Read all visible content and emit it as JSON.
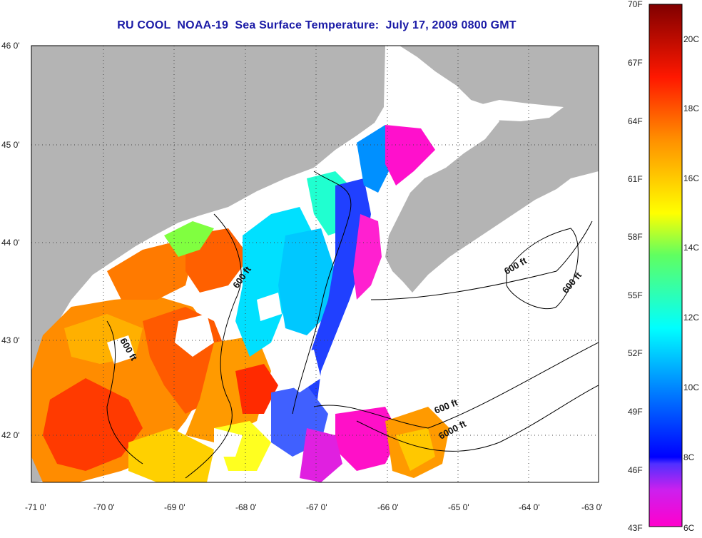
{
  "title": "RU COOL  NOAA-19  Sea Surface Temperature:  July 17, 2009 0800 GMT",
  "map": {
    "lon_range": [
      -71,
      -63
    ],
    "lat_range": [
      41.5,
      46
    ],
    "lon_ticks": [
      "-71 0'",
      "-70 0'",
      "-69 0'",
      "-68 0'",
      "-67 0'",
      "-66 0'",
      "-65 0'",
      "-64 0'",
      "-63 0'"
    ],
    "lat_ticks": [
      "46 0'",
      "45 0'",
      "44 0'",
      "43 0'",
      "42 0'"
    ],
    "contour_labels": [
      "600 ft",
      "600 ft",
      "600 ft",
      "600 ft",
      "600 ft",
      "6000 ft"
    ],
    "colors": {
      "land": "#b4b4b4",
      "cloud": "#ffffff",
      "frame": "#000000"
    }
  },
  "colorbar": {
    "fahrenheit_labels": [
      "70F",
      "67F",
      "64F",
      "61F",
      "58F",
      "55F",
      "52F",
      "49F",
      "46F",
      "43F"
    ],
    "celsius_labels": [
      "20C",
      "18C",
      "16C",
      "14C",
      "12C",
      "10C",
      "8C",
      "6C"
    ],
    "range_c": [
      6,
      21.1
    ],
    "colors": [
      "#ff00cc",
      "#b030ff",
      "#0000ff",
      "#00a0ff",
      "#00ffff",
      "#40ff80",
      "#ffff00",
      "#ffa000",
      "#ff3000",
      "#d00000",
      "#800000"
    ]
  }
}
